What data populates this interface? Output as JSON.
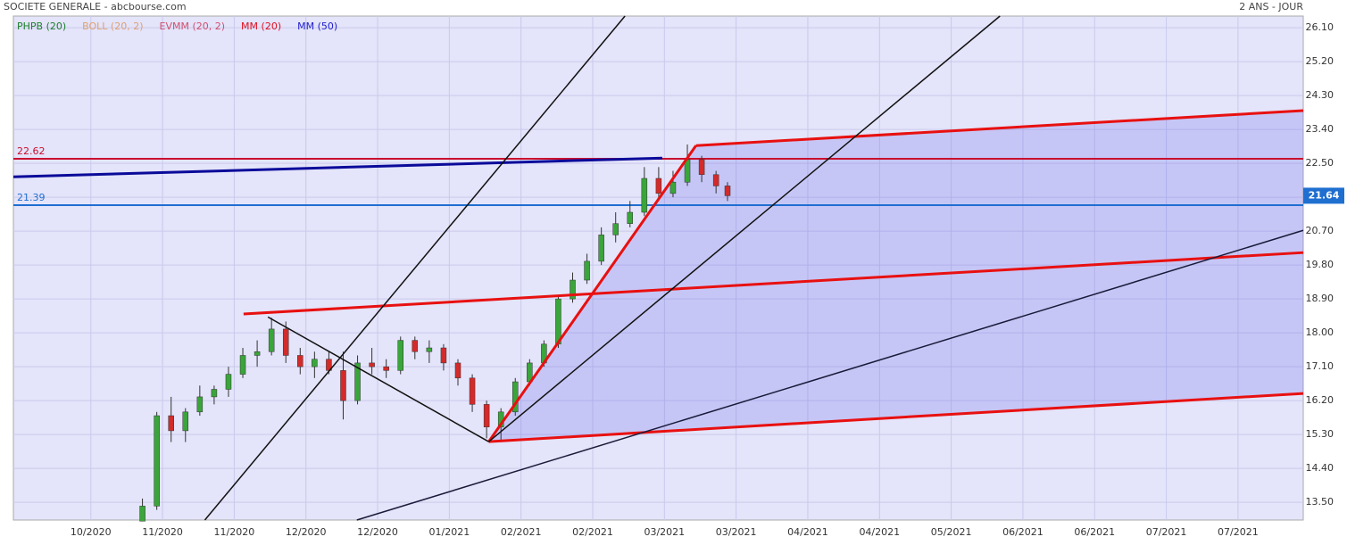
{
  "chart_data": {
    "type": "candlestick",
    "title": "SOCIETE GENERALE - abcbourse.com",
    "period": "2 ANS - JOUR",
    "legend": [
      {
        "name": "PHPB (20)",
        "color": "#1a7f2a"
      },
      {
        "name": "BOLL (20, 2)",
        "color": "#e0a070"
      },
      {
        "name": "EVMM (20, 2)",
        "color": "#d05070"
      },
      {
        "name": "MM (20)",
        "color": "#e01020"
      },
      {
        "name": "MM (50)",
        "color": "#2020d0"
      }
    ],
    "up_color": "#3aa53a",
    "down_color": "#d42a2a",
    "grid": true,
    "xlim": [
      -1.08,
      16.91
    ],
    "ylim": [
      13.03,
      26.41
    ],
    "xticks": [
      {
        "value": 0,
        "label": "10/2020"
      },
      {
        "value": 1,
        "label": "11/2020"
      },
      {
        "value": 2,
        "label": "11/2020"
      },
      {
        "value": 3,
        "label": "12/2020"
      },
      {
        "value": 4,
        "label": "12/2020"
      },
      {
        "value": 5,
        "label": "01/2021"
      },
      {
        "value": 6,
        "label": "02/2021"
      },
      {
        "value": 7,
        "label": "02/2021"
      },
      {
        "value": 8,
        "label": "03/2021"
      },
      {
        "value": 9,
        "label": "03/2021"
      },
      {
        "value": 10,
        "label": "04/2021"
      },
      {
        "value": 11,
        "label": "04/2021"
      },
      {
        "value": 12,
        "label": "05/2021"
      },
      {
        "value": 13,
        "label": "06/2021"
      },
      {
        "value": 14,
        "label": "06/2021"
      },
      {
        "value": 15,
        "label": "07/2021"
      },
      {
        "value": 16,
        "label": "07/2021"
      }
    ],
    "yticks": [
      {
        "value": 13.5,
        "label": "13.50"
      },
      {
        "value": 14.4,
        "label": "14.40"
      },
      {
        "value": 15.3,
        "label": "15.30"
      },
      {
        "value": 16.2,
        "label": "16.20"
      },
      {
        "value": 17.1,
        "label": "17.10"
      },
      {
        "value": 18.0,
        "label": "18.00"
      },
      {
        "value": 18.9,
        "label": "18.90"
      },
      {
        "value": 19.8,
        "label": "19.80"
      },
      {
        "value": 20.7,
        "label": "20.70"
      },
      {
        "value": 21.6,
        "label": "21.60"
      },
      {
        "value": 22.5,
        "label": "22.50"
      },
      {
        "value": 23.4,
        "label": "23.40"
      },
      {
        "value": 24.3,
        "label": "24.30"
      },
      {
        "value": 25.2,
        "label": "25.20"
      },
      {
        "value": 26.1,
        "label": "26.10"
      }
    ],
    "x": [
      0.72,
      0.92,
      1.12,
      1.32,
      1.52,
      1.72,
      1.92,
      2.12,
      2.32,
      2.52,
      2.72,
      2.92,
      3.12,
      3.32,
      3.52,
      3.72,
      3.92,
      4.12,
      4.32,
      4.52,
      4.72,
      4.92,
      5.12,
      5.32,
      5.52,
      5.72,
      5.92,
      6.12,
      6.32,
      6.52,
      6.72,
      6.92,
      7.12,
      7.32,
      7.52,
      7.72,
      7.92,
      8.12,
      8.32,
      8.52,
      8.72,
      8.88
    ],
    "ohlc": [
      [
        13.0,
        13.6,
        13.0,
        13.4
      ],
      [
        13.4,
        15.9,
        13.3,
        15.8
      ],
      [
        15.8,
        16.3,
        15.1,
        15.4
      ],
      [
        15.4,
        16.0,
        15.1,
        15.9
      ],
      [
        15.9,
        16.6,
        15.8,
        16.3
      ],
      [
        16.3,
        16.6,
        16.1,
        16.5
      ],
      [
        16.5,
        17.1,
        16.3,
        16.9
      ],
      [
        16.9,
        17.6,
        16.8,
        17.4
      ],
      [
        17.4,
        17.8,
        17.1,
        17.5
      ],
      [
        17.5,
        18.4,
        17.4,
        18.1
      ],
      [
        18.1,
        18.3,
        17.2,
        17.4
      ],
      [
        17.4,
        17.6,
        16.9,
        17.1
      ],
      [
        17.1,
        17.5,
        16.8,
        17.3
      ],
      [
        17.3,
        17.5,
        16.9,
        17.0
      ],
      [
        17.0,
        17.5,
        15.7,
        16.2
      ],
      [
        16.2,
        17.4,
        16.1,
        17.2
      ],
      [
        17.2,
        17.6,
        16.9,
        17.1
      ],
      [
        17.1,
        17.3,
        16.8,
        17.0
      ],
      [
        17.0,
        17.9,
        16.9,
        17.8
      ],
      [
        17.8,
        17.9,
        17.3,
        17.5
      ],
      [
        17.5,
        17.8,
        17.2,
        17.6
      ],
      [
        17.6,
        17.7,
        17.0,
        17.2
      ],
      [
        17.2,
        17.3,
        16.6,
        16.8
      ],
      [
        16.8,
        16.9,
        15.9,
        16.1
      ],
      [
        16.1,
        16.2,
        15.2,
        15.5
      ],
      [
        15.5,
        16.0,
        15.1,
        15.9
      ],
      [
        15.9,
        16.8,
        15.8,
        16.7
      ],
      [
        16.7,
        17.3,
        16.6,
        17.2
      ],
      [
        17.2,
        17.8,
        17.1,
        17.7
      ],
      [
        17.7,
        19.0,
        17.6,
        18.9
      ],
      [
        18.9,
        19.6,
        18.8,
        19.4
      ],
      [
        19.4,
        20.1,
        19.3,
        19.9
      ],
      [
        19.9,
        20.8,
        19.8,
        20.6
      ],
      [
        20.6,
        21.2,
        20.4,
        20.9
      ],
      [
        20.9,
        21.5,
        20.8,
        21.2
      ],
      [
        21.2,
        22.4,
        21.1,
        22.1
      ],
      [
        22.1,
        22.4,
        21.5,
        21.7
      ],
      [
        21.7,
        22.3,
        21.6,
        22.0
      ],
      [
        22.0,
        23.0,
        21.9,
        22.6
      ],
      [
        22.6,
        22.7,
        22.0,
        22.2
      ],
      [
        22.2,
        22.3,
        21.7,
        21.9
      ],
      [
        21.9,
        22.0,
        21.5,
        21.64
      ]
    ],
    "levels": [
      {
        "value": 22.62,
        "color": "#c8102e"
      },
      {
        "value": 21.39,
        "color": "#1f6fd0"
      }
    ],
    "trendlines": [
      {
        "start": [
          8.44,
          22.97
        ],
        "end": [
          16.91,
          23.9
        ],
        "color": "#e81010",
        "width": 3
      },
      {
        "start": [
          2.13,
          18.5
        ],
        "end": [
          16.91,
          20.13
        ],
        "color": "#e81010",
        "width": 3
      },
      {
        "start": [
          5.55,
          15.11
        ],
        "end": [
          16.91,
          16.39
        ],
        "color": "#e81010",
        "width": 3
      },
      {
        "start": [
          5.55,
          15.11
        ],
        "end": [
          8.44,
          22.97
        ],
        "color": "#e81010",
        "width": 3
      },
      {
        "start": [
          -1.08,
          22.14
        ],
        "end": [
          7.97,
          22.64
        ],
        "color": "#0a0a9a",
        "width": 3
      },
      {
        "start": [
          1.59,
          13.03
        ],
        "end": [
          7.45,
          26.41
        ],
        "color": "#111111",
        "width": 1.5
      },
      {
        "start": [
          5.55,
          15.11
        ],
        "end": [
          12.68,
          26.41
        ],
        "color": "#111111",
        "width": 1.5
      },
      {
        "start": [
          2.47,
          18.42
        ],
        "end": [
          5.55,
          15.11
        ],
        "color": "#111111",
        "width": 1.5
      },
      {
        "start": [
          3.71,
          13.03
        ],
        "end": [
          16.91,
          20.72
        ],
        "color": "#1a1a3a",
        "width": 1.5
      }
    ]
  }
}
